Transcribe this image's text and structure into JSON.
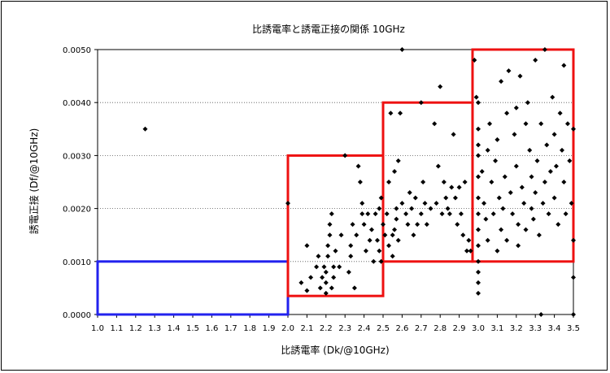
{
  "chart_data": {
    "type": "scatter",
    "title": "比誘電率と誘電正接の関係 10GHz",
    "xlabel": "比誘電率 (Dk/@10GHz)",
    "ylabel": "誘電正接 (Df/@10GHz)",
    "xlim": [
      1.0,
      3.5
    ],
    "ylim": [
      0.0,
      0.005
    ],
    "x_ticks": [
      "1.0",
      "1.1",
      "1.2",
      "1.3",
      "1.4",
      "1.5",
      "1.6",
      "1.7",
      "1.8",
      "1.9",
      "2.0",
      "2.1",
      "2.2",
      "2.3",
      "2.4",
      "2.5",
      "2.6",
      "2.7",
      "2.8",
      "2.9",
      "3.0",
      "3.1",
      "3.2",
      "3.3",
      "3.4",
      "3.5"
    ],
    "y_ticks": [
      "0.0000",
      "0.0010",
      "0.0020",
      "0.0030",
      "0.0040",
      "0.0050"
    ],
    "grid": "horizontal dotted",
    "marker": "diamond",
    "marker_color": "#000000",
    "regions": [
      {
        "x": [
          1.0,
          2.0
        ],
        "y": [
          0.0,
          0.001
        ],
        "color": "#2222ee"
      },
      {
        "x": [
          2.0,
          2.5
        ],
        "y": [
          0.00035,
          0.003
        ],
        "color": "#ee1111"
      },
      {
        "x": [
          2.5,
          2.97
        ],
        "y": [
          0.001,
          0.004
        ],
        "color": "#ee1111"
      },
      {
        "x": [
          2.97,
          3.5
        ],
        "y": [
          0.001,
          0.005
        ],
        "color": "#ee1111"
      }
    ],
    "points": [
      [
        1.25,
        0.0035
      ],
      [
        2.0,
        0.0021
      ],
      [
        2.07,
        0.0006
      ],
      [
        2.1,
        0.00045
      ],
      [
        2.1,
        0.0013
      ],
      [
        2.12,
        0.0007
      ],
      [
        2.15,
        0.0009
      ],
      [
        2.16,
        0.0011
      ],
      [
        2.17,
        0.0005
      ],
      [
        2.18,
        0.0007
      ],
      [
        2.19,
        0.0009
      ],
      [
        2.2,
        0.0004
      ],
      [
        2.2,
        0.0006
      ],
      [
        2.2,
        0.0008
      ],
      [
        2.21,
        0.0011
      ],
      [
        2.21,
        0.0013
      ],
      [
        2.22,
        0.0015
      ],
      [
        2.22,
        0.0017
      ],
      [
        2.23,
        0.0019
      ],
      [
        2.23,
        0.0005
      ],
      [
        2.24,
        0.0007
      ],
      [
        2.24,
        0.0009
      ],
      [
        2.25,
        0.0012
      ],
      [
        2.27,
        0.0009
      ],
      [
        2.28,
        0.0015
      ],
      [
        2.3,
        0.003
      ],
      [
        2.32,
        0.0008
      ],
      [
        2.33,
        0.0013
      ],
      [
        2.33,
        0.0011
      ],
      [
        2.34,
        0.0017
      ],
      [
        2.35,
        0.0005
      ],
      [
        2.36,
        0.0015
      ],
      [
        2.37,
        0.0028
      ],
      [
        2.38,
        0.0025
      ],
      [
        2.39,
        0.0019
      ],
      [
        2.39,
        0.0021
      ],
      [
        2.4,
        0.0017
      ],
      [
        2.41,
        0.0012
      ],
      [
        2.42,
        0.0019
      ],
      [
        2.43,
        0.0014
      ],
      [
        2.44,
        0.0016
      ],
      [
        2.45,
        0.001
      ],
      [
        2.46,
        0.0019
      ],
      [
        2.47,
        0.0014
      ],
      [
        2.48,
        0.002
      ],
      [
        2.48,
        0.0012
      ],
      [
        2.49,
        0.0022
      ],
      [
        2.49,
        0.001
      ],
      [
        2.5,
        0.0017
      ],
      [
        2.51,
        0.0015
      ],
      [
        2.52,
        0.0019
      ],
      [
        2.53,
        0.0013
      ],
      [
        2.53,
        0.0025
      ],
      [
        2.54,
        0.0038
      ],
      [
        2.55,
        0.0011
      ],
      [
        2.55,
        0.0015
      ],
      [
        2.56,
        0.0016
      ],
      [
        2.56,
        0.0027
      ],
      [
        2.57,
        0.0018
      ],
      [
        2.57,
        0.002
      ],
      [
        2.58,
        0.0029
      ],
      [
        2.58,
        0.0014
      ],
      [
        2.59,
        0.0038
      ],
      [
        2.6,
        0.005
      ],
      [
        2.6,
        0.0021
      ],
      [
        2.62,
        0.0019
      ],
      [
        2.63,
        0.0017
      ],
      [
        2.64,
        0.0023
      ],
      [
        2.65,
        0.002
      ],
      [
        2.66,
        0.0015
      ],
      [
        2.67,
        0.0022
      ],
      [
        2.68,
        0.0017
      ],
      [
        2.7,
        0.004
      ],
      [
        2.7,
        0.0019
      ],
      [
        2.71,
        0.0025
      ],
      [
        2.72,
        0.0021
      ],
      [
        2.73,
        0.0017
      ],
      [
        2.75,
        0.002
      ],
      [
        2.77,
        0.0036
      ],
      [
        2.78,
        0.0021
      ],
      [
        2.79,
        0.0028
      ],
      [
        2.8,
        0.0043
      ],
      [
        2.81,
        0.0019
      ],
      [
        2.82,
        0.0025
      ],
      [
        2.83,
        0.0022
      ],
      [
        2.84,
        0.002
      ],
      [
        2.85,
        0.0019
      ],
      [
        2.86,
        0.0024
      ],
      [
        2.87,
        0.0034
      ],
      [
        2.88,
        0.0022
      ],
      [
        2.89,
        0.0017
      ],
      [
        2.9,
        0.0024
      ],
      [
        2.91,
        0.0019
      ],
      [
        2.92,
        0.0015
      ],
      [
        2.93,
        0.0025
      ],
      [
        2.94,
        0.0012
      ],
      [
        2.95,
        0.0014
      ],
      [
        2.96,
        0.0012
      ],
      [
        2.98,
        0.0048
      ],
      [
        2.99,
        0.0041
      ],
      [
        3.0,
        0.004
      ],
      [
        3.0,
        0.0035
      ],
      [
        3.0,
        0.0032
      ],
      [
        3.0,
        0.003
      ],
      [
        3.0,
        0.0026
      ],
      [
        3.0,
        0.0022
      ],
      [
        3.0,
        0.0019
      ],
      [
        3.0,
        0.0016
      ],
      [
        3.0,
        0.0013
      ],
      [
        3.0,
        0.001
      ],
      [
        3.0,
        0.0008
      ],
      [
        3.0,
        0.0006
      ],
      [
        3.0,
        0.0004
      ],
      [
        3.02,
        0.0027
      ],
      [
        3.03,
        0.0021
      ],
      [
        3.04,
        0.0018
      ],
      [
        3.05,
        0.0031
      ],
      [
        3.05,
        0.0014
      ],
      [
        3.06,
        0.0036
      ],
      [
        3.07,
        0.0025
      ],
      [
        3.08,
        0.0019
      ],
      [
        3.09,
        0.0029
      ],
      [
        3.1,
        0.0012
      ],
      [
        3.1,
        0.0033
      ],
      [
        3.11,
        0.0022
      ],
      [
        3.12,
        0.0044
      ],
      [
        3.12,
        0.0016
      ],
      [
        3.13,
        0.002
      ],
      [
        3.14,
        0.0026
      ],
      [
        3.15,
        0.0014
      ],
      [
        3.15,
        0.0038
      ],
      [
        3.16,
        0.0046
      ],
      [
        3.17,
        0.0023
      ],
      [
        3.18,
        0.0019
      ],
      [
        3.19,
        0.0034
      ],
      [
        3.2,
        0.0039
      ],
      [
        3.2,
        0.0028
      ],
      [
        3.21,
        0.0017
      ],
      [
        3.21,
        0.0013
      ],
      [
        3.22,
        0.0045
      ],
      [
        3.23,
        0.0024
      ],
      [
        3.24,
        0.0021
      ],
      [
        3.25,
        0.0036
      ],
      [
        3.25,
        0.0016
      ],
      [
        3.26,
        0.004
      ],
      [
        3.27,
        0.0031
      ],
      [
        3.28,
        0.0026
      ],
      [
        3.28,
        0.002
      ],
      [
        3.29,
        0.0018
      ],
      [
        3.3,
        0.0048
      ],
      [
        3.3,
        0.0023
      ],
      [
        3.31,
        0.0029
      ],
      [
        3.32,
        0.0015
      ],
      [
        3.33,
        0.0
      ],
      [
        3.33,
        0.0036
      ],
      [
        3.34,
        0.0021
      ],
      [
        3.35,
        0.0025
      ],
      [
        3.35,
        0.005
      ],
      [
        3.36,
        0.0032
      ],
      [
        3.37,
        0.0019
      ],
      [
        3.38,
        0.0027
      ],
      [
        3.39,
        0.0041
      ],
      [
        3.4,
        0.0034
      ],
      [
        3.4,
        0.0022
      ],
      [
        3.41,
        0.0028
      ],
      [
        3.42,
        0.0017
      ],
      [
        3.43,
        0.0038
      ],
      [
        3.44,
        0.0031
      ],
      [
        3.45,
        0.0047
      ],
      [
        3.45,
        0.0025
      ],
      [
        3.46,
        0.0019
      ],
      [
        3.47,
        0.0036
      ],
      [
        3.48,
        0.0029
      ],
      [
        3.49,
        0.0021
      ],
      [
        3.5,
        0.0035
      ],
      [
        3.5,
        0.0014
      ],
      [
        3.5,
        0.0007
      ],
      [
        3.5,
        0.0
      ]
    ]
  }
}
